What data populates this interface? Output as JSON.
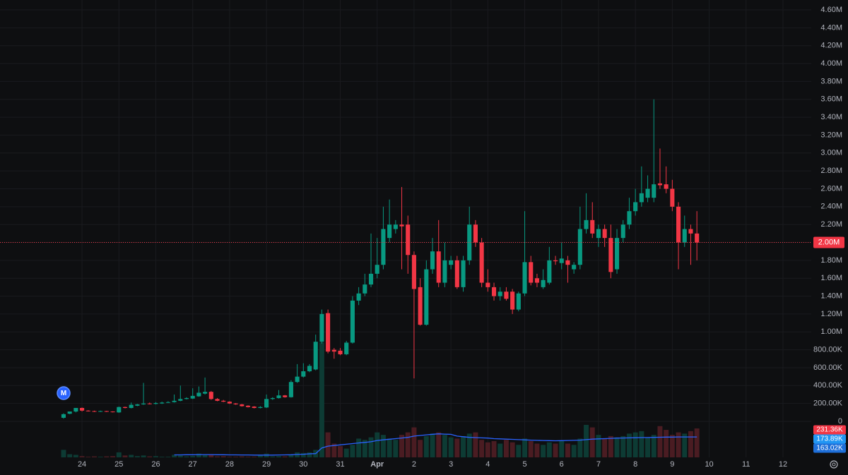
{
  "chart_data": {
    "type": "candlestick",
    "colors": {
      "up": "#089981",
      "down": "#f23645",
      "grid": "#1a1b1f",
      "volume_up": "#0d3b34",
      "volume_down": "#4a1c22",
      "ma": "#2962ff",
      "background": "#0e0f11"
    },
    "grid": true,
    "marker": "M",
    "open": [
      40000,
      85000,
      110000,
      150000,
      120000,
      115000,
      110000,
      115000,
      110000,
      100000,
      160000,
      150000,
      175000,
      190000,
      200000,
      195000,
      200000,
      210000,
      215000,
      230000,
      250000,
      255000,
      280000,
      310000,
      330000,
      250000,
      230000,
      220000,
      200000,
      190000,
      175000,
      165000,
      150000,
      155000,
      250000,
      260000,
      290000,
      270000,
      440000,
      500000,
      560000,
      580000,
      890000,
      1210000,
      800000,
      790000,
      750000,
      880000,
      1350000,
      1430000,
      1530000,
      1650000,
      1750000,
      2050000,
      2150000,
      2200000,
      2200000,
      1860000,
      1500000,
      1080000,
      1700000,
      1900000,
      1550000,
      1750000,
      1800000,
      1500000,
      1800000,
      2200000,
      2000000,
      1550000,
      1500000,
      1400000,
      1450000,
      1450000,
      1250000,
      1430000,
      1780000,
      1600000,
      1500000,
      1550000,
      1800000,
      1770000,
      1800000,
      1700000,
      1750000,
      2150000,
      2250000,
      2050000,
      2150000,
      2050000,
      1700000,
      2050000,
      2200000,
      2350000,
      2450000,
      2500000,
      2500000,
      2660000,
      2650000,
      2600000,
      2400000,
      2000000,
      2150000,
      2100000
    ],
    "high": [
      90000,
      110000,
      150000,
      155000,
      125000,
      120000,
      120000,
      118000,
      112000,
      165000,
      165000,
      210000,
      195000,
      430000,
      210000,
      215000,
      220000,
      225000,
      300000,
      400000,
      270000,
      370000,
      390000,
      490000,
      340000,
      260000,
      240000,
      225000,
      205000,
      195000,
      180000,
      170000,
      170000,
      300000,
      270000,
      350000,
      295000,
      460000,
      640000,
      650000,
      640000,
      970000,
      1250000,
      1250000,
      820000,
      820000,
      900000,
      1400000,
      1500000,
      1650000,
      2100000,
      2050000,
      2400000,
      2480000,
      2250000,
      2620000,
      2300000,
      1900000,
      1600000,
      1800000,
      2050000,
      2250000,
      2000000,
      1850000,
      1850000,
      1850000,
      2400000,
      2250000,
      2050000,
      1700000,
      1550000,
      1500000,
      1500000,
      1480000,
      1450000,
      2350000,
      1850000,
      1650000,
      1700000,
      1950000,
      1850000,
      2000000,
      1850000,
      1780000,
      2400000,
      2550000,
      2450000,
      2200000,
      2200000,
      2200000,
      2150000,
      2250000,
      2500000,
      2600000,
      2850000,
      2750000,
      3600000,
      3050000,
      2850000,
      2700000,
      2450000,
      2300000,
      2200000,
      2350000
    ],
    "low": [
      30000,
      80000,
      100000,
      110000,
      110000,
      105000,
      105000,
      105000,
      100000,
      95000,
      145000,
      145000,
      170000,
      185000,
      190000,
      190000,
      195000,
      205000,
      210000,
      225000,
      245000,
      250000,
      275000,
      300000,
      240000,
      225000,
      215000,
      195000,
      185000,
      165000,
      155000,
      145000,
      145000,
      150000,
      240000,
      255000,
      265000,
      265000,
      430000,
      490000,
      550000,
      570000,
      870000,
      760000,
      700000,
      740000,
      740000,
      870000,
      1300000,
      1400000,
      1500000,
      1600000,
      1700000,
      2000000,
      2100000,
      1700000,
      1650000,
      480000,
      1070000,
      1070000,
      1650000,
      1500000,
      1500000,
      1700000,
      1480000,
      1450000,
      1750000,
      1950000,
      1500000,
      1450000,
      1350000,
      1350000,
      1350000,
      1200000,
      1230000,
      1400000,
      1520000,
      1500000,
      1480000,
      1530000,
      1750000,
      1700000,
      1550000,
      1650000,
      1700000,
      2100000,
      2050000,
      1950000,
      1950000,
      1600000,
      1650000,
      2000000,
      2150000,
      2300000,
      2400000,
      2450000,
      2450000,
      2600000,
      2550000,
      2350000,
      1700000,
      1950000,
      1750000,
      1800000
    ],
    "close": [
      80000,
      110000,
      150000,
      120000,
      115000,
      110000,
      115000,
      110000,
      105000,
      160000,
      150000,
      185000,
      190000,
      200000,
      195000,
      205000,
      210000,
      215000,
      230000,
      250000,
      260000,
      285000,
      320000,
      330000,
      250000,
      230000,
      220000,
      200000,
      190000,
      170000,
      160000,
      150000,
      160000,
      250000,
      260000,
      290000,
      270000,
      440000,
      500000,
      560000,
      620000,
      890000,
      1200000,
      780000,
      780000,
      750000,
      880000,
      1350000,
      1430000,
      1530000,
      1650000,
      1750000,
      2150000,
      2200000,
      2200000,
      2180000,
      1860000,
      1480000,
      1080000,
      1700000,
      1900000,
      1550000,
      1800000,
      1800000,
      1500000,
      1800000,
      2200000,
      2000000,
      1550000,
      1500000,
      1400000,
      1450000,
      1370000,
      1250000,
      1430000,
      1780000,
      1550000,
      1550000,
      1580000,
      1800000,
      1790000,
      1820000,
      1750000,
      1750000,
      2150000,
      2250000,
      2100000,
      2150000,
      2050000,
      1670000,
      2050000,
      2200000,
      2350000,
      2450000,
      2550000,
      2600000,
      2650000,
      2640000,
      2600000,
      2400000,
      2000000,
      2150000,
      2100000,
      2000000
    ],
    "volume": [
      60000,
      25000,
      20000,
      10000,
      5000,
      8000,
      5000,
      8000,
      10000,
      40000,
      15000,
      20000,
      10000,
      15000,
      8000,
      10000,
      5000,
      5000,
      20000,
      15000,
      8000,
      12000,
      30000,
      18000,
      25000,
      8000,
      10000,
      5000,
      5000,
      8000,
      5000,
      5000,
      15000,
      30000,
      8000,
      10000,
      8000,
      20000,
      40000,
      35000,
      40000,
      60000,
      920000,
      200000,
      110000,
      90000,
      70000,
      100000,
      150000,
      140000,
      160000,
      200000,
      180000,
      150000,
      140000,
      180000,
      200000,
      240000,
      140000,
      170000,
      190000,
      200000,
      180000,
      160000,
      150000,
      170000,
      190000,
      200000,
      140000,
      120000,
      130000,
      110000,
      140000,
      120000,
      100000,
      150000,
      130000,
      110000,
      100000,
      120000,
      110000,
      130000,
      110000,
      100000,
      150000,
      260000,
      240000,
      180000,
      150000,
      170000,
      160000,
      170000,
      190000,
      200000,
      210000,
      160000,
      180000,
      250000,
      220000,
      180000,
      200000,
      190000,
      210000,
      231360
    ],
    "volume_ma": [
      null,
      null,
      null,
      null,
      null,
      null,
      null,
      null,
      null,
      null,
      null,
      null,
      null,
      null,
      null,
      null,
      null,
      null,
      20000,
      20000,
      21000,
      21000,
      22000,
      22000,
      22000,
      21000,
      21000,
      20000,
      20000,
      19000,
      19000,
      18000,
      18000,
      18000,
      18000,
      19000,
      20000,
      21000,
      23000,
      25000,
      28000,
      30000,
      75000,
      90000,
      95000,
      100000,
      105000,
      110000,
      115000,
      120000,
      125000,
      135000,
      140000,
      145000,
      150000,
      155000,
      160000,
      170000,
      175000,
      180000,
      185000,
      188000,
      186000,
      184000,
      170000,
      165000,
      160000,
      158000,
      156000,
      154000,
      150000,
      148000,
      146000,
      144000,
      142000,
      140000,
      138000,
      136000,
      135000,
      134000,
      133000,
      134000,
      135000,
      136000,
      138000,
      142000,
      146000,
      148000,
      150000,
      152000,
      154000,
      155000,
      156000,
      157000,
      158000,
      159000,
      160000,
      161000,
      162000,
      162000,
      163000,
      163000,
      163000,
      163020
    ],
    "volume_ylim": [
      0,
      1000000
    ],
    "xlim": [
      -10.34,
      121.6
    ],
    "xticks": [
      {
        "value": 3,
        "label": "24"
      },
      {
        "value": 9,
        "label": "25"
      },
      {
        "value": 15,
        "label": "26"
      },
      {
        "value": 21,
        "label": "27"
      },
      {
        "value": 27,
        "label": "28"
      },
      {
        "value": 33,
        "label": "29"
      },
      {
        "value": 39,
        "label": "30"
      },
      {
        "value": 45,
        "label": "31"
      },
      {
        "value": 51,
        "label": "Apr"
      },
      {
        "value": 57,
        "label": "2"
      },
      {
        "value": 63,
        "label": "3"
      },
      {
        "value": 69,
        "label": "4"
      },
      {
        "value": 75,
        "label": "5"
      },
      {
        "value": 81,
        "label": "6"
      },
      {
        "value": 87,
        "label": "7"
      },
      {
        "value": 93,
        "label": "8"
      },
      {
        "value": 99,
        "label": "9"
      },
      {
        "value": 105,
        "label": "10"
      },
      {
        "value": 111,
        "label": "11"
      },
      {
        "value": 117,
        "label": "12"
      }
    ],
    "ylim": [
      0,
      4600000
    ],
    "yticks": [
      0,
      {
        "value": 200000,
        "label": "200.00K"
      },
      {
        "value": 400000,
        "label": "400.00K"
      },
      {
        "value": 600000,
        "label": "600.00K"
      },
      {
        "value": 800000,
        "label": "800.00K"
      },
      {
        "value": 1000000,
        "label": "1.00M"
      },
      {
        "value": 1200000,
        "label": "1.20M"
      },
      {
        "value": 1400000,
        "label": "1.40M"
      },
      {
        "value": 1600000,
        "label": "1.60M"
      },
      {
        "value": 1800000,
        "label": "1.80M"
      },
      {
        "value": 2000000,
        "label": "2.00M"
      },
      {
        "value": 2200000,
        "label": "2.20M"
      },
      {
        "value": 2400000,
        "label": "2.40M"
      },
      {
        "value": 2600000,
        "label": "2.60M"
      },
      {
        "value": 2800000,
        "label": "2.80M"
      },
      {
        "value": 3000000,
        "label": "3.00M"
      },
      {
        "value": 3200000,
        "label": "3.20M"
      },
      {
        "value": 3400000,
        "label": "3.40M"
      },
      {
        "value": 3600000,
        "label": "3.60M"
      },
      {
        "value": 3800000,
        "label": "3.80M"
      },
      {
        "value": 4000000,
        "label": "4.00M"
      },
      {
        "value": 4200000,
        "label": "4.20M"
      },
      {
        "value": 4400000,
        "label": "4.40M"
      },
      {
        "value": 4600000,
        "label": "4.60M"
      }
    ],
    "last_price": {
      "value": 2000000,
      "label": "2.00M",
      "color": "#f23645"
    },
    "volume_tags": [
      {
        "value": 231360,
        "label": "231.36K",
        "color": "#f23645"
      },
      {
        "value": 173890,
        "label": "173.89K",
        "color": "#2196f3"
      },
      {
        "value": 163020,
        "label": "163.02K",
        "color": "#1e6fd9"
      }
    ]
  }
}
